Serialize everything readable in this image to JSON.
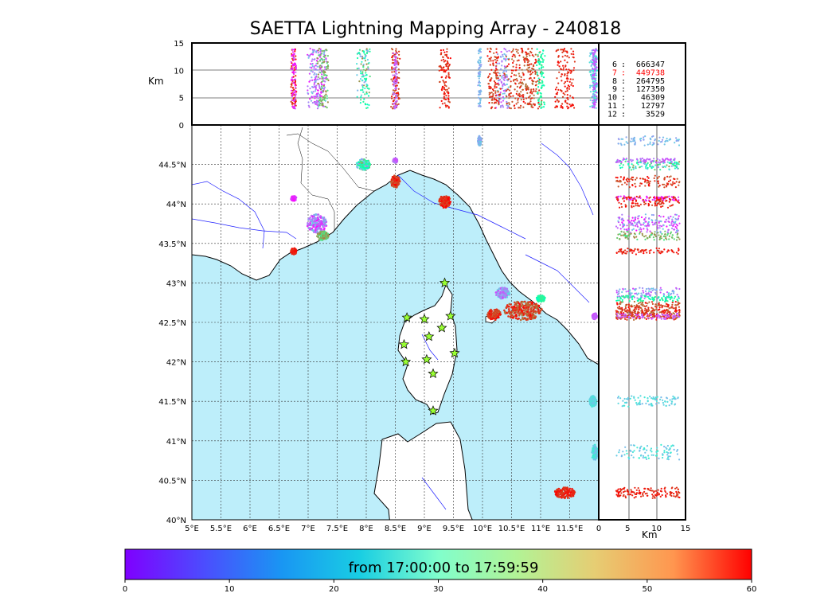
{
  "title": "SAETTA Lightning Mapping Array - 240818",
  "chart_data": {
    "type": "scatter",
    "title": "SAETTA Lightning Mapping Array - 240818",
    "map": {
      "lon_ticks": [
        "5°E",
        "5.5°E",
        "6°E",
        "6.5°E",
        "7°E",
        "7.5°E",
        "8°E",
        "8.5°E",
        "9°E",
        "9.5°E",
        "10°E",
        "10.5°E",
        "11°E",
        "11.5°E"
      ],
      "lat_ticks": [
        "40°N",
        "40.5°N",
        "41°N",
        "41.5°N",
        "42°N",
        "42.5°N",
        "43°N",
        "43.5°N",
        "44°N",
        "44.5°N"
      ],
      "lon_range": [
        5.0,
        12.0
      ],
      "lat_range": [
        40.0,
        45.0
      ],
      "grid": true
    },
    "altitude_panels": {
      "unit_label": "Km",
      "range": [
        0,
        15
      ],
      "ticks": [
        "0",
        "5",
        "10",
        "15"
      ]
    },
    "stations": [
      {
        "lon": 9.35,
        "lat": 43.0
      },
      {
        "lon": 8.7,
        "lat": 42.56
      },
      {
        "lon": 9.0,
        "lat": 42.54
      },
      {
        "lon": 9.45,
        "lat": 42.58
      },
      {
        "lon": 9.3,
        "lat": 42.43
      },
      {
        "lon": 9.08,
        "lat": 42.32
      },
      {
        "lon": 8.65,
        "lat": 42.22
      },
      {
        "lon": 9.52,
        "lat": 42.11
      },
      {
        "lon": 9.04,
        "lat": 42.03
      },
      {
        "lon": 8.68,
        "lat": 42.0
      },
      {
        "lon": 9.15,
        "lat": 41.85
      },
      {
        "lon": 9.15,
        "lat": 41.38
      }
    ],
    "sources_by_station_count": [
      {
        "stations": "6",
        "count": "666347",
        "highlight": false
      },
      {
        "stations": "7",
        "count": "449738",
        "highlight": true
      },
      {
        "stations": "8",
        "count": "264795",
        "highlight": false
      },
      {
        "stations": "9",
        "count": "127350",
        "highlight": false
      },
      {
        "stations": "10",
        "count": "46309",
        "highlight": false
      },
      {
        "stations": "11",
        "count": "12797",
        "highlight": false
      },
      {
        "stations": "12",
        "count": "3529",
        "highlight": false
      }
    ],
    "clusters": [
      {
        "lon": 7.15,
        "lat": 43.75,
        "rlon": 0.17,
        "rlat": 0.12,
        "t0": 0,
        "t1": 18
      },
      {
        "lon": 7.25,
        "lat": 43.6,
        "rlon": 0.1,
        "rlat": 0.06,
        "t0": 38,
        "t1": 50
      },
      {
        "lon": 6.75,
        "lat": 43.4,
        "rlon": 0.05,
        "rlat": 0.04,
        "t0": 55,
        "t1": 60
      },
      {
        "lon": 6.75,
        "lat": 44.07,
        "rlon": 0.05,
        "rlat": 0.03,
        "t0": 0,
        "t1": 6
      },
      {
        "lon": 7.95,
        "lat": 44.5,
        "rlon": 0.12,
        "rlat": 0.07,
        "t0": 10,
        "t1": 50
      },
      {
        "lon": 8.5,
        "lat": 44.28,
        "rlon": 0.08,
        "rlat": 0.08,
        "t0": 52,
        "t1": 60
      },
      {
        "lon": 8.5,
        "lat": 44.55,
        "rlon": 0.04,
        "rlat": 0.03,
        "t0": 5,
        "t1": 10
      },
      {
        "lon": 9.35,
        "lat": 44.03,
        "rlon": 0.1,
        "rlat": 0.08,
        "t0": 54,
        "t1": 60
      },
      {
        "lon": 9.95,
        "lat": 44.8,
        "rlon": 0.03,
        "rlat": 0.06,
        "t0": 12,
        "t1": 18
      },
      {
        "lon": 10.35,
        "lat": 42.87,
        "rlon": 0.12,
        "rlat": 0.07,
        "t0": 5,
        "t1": 20
      },
      {
        "lon": 10.7,
        "lat": 42.65,
        "rlon": 0.33,
        "rlat": 0.12,
        "t0": 50,
        "t1": 60
      },
      {
        "lon": 10.2,
        "lat": 42.6,
        "rlon": 0.12,
        "rlat": 0.07,
        "t0": 52,
        "t1": 60
      },
      {
        "lon": 11.0,
        "lat": 42.8,
        "rlon": 0.08,
        "rlat": 0.04,
        "t0": 28,
        "t1": 38
      },
      {
        "lon": 11.42,
        "lat": 40.34,
        "rlon": 0.18,
        "rlat": 0.07,
        "t0": 55,
        "t1": 60
      },
      {
        "lon": 11.9,
        "lat": 41.5,
        "rlon": 0.06,
        "rlat": 0.07,
        "t0": 15,
        "t1": 22
      },
      {
        "lon": 11.93,
        "lat": 40.85,
        "rlon": 0.05,
        "rlat": 0.1,
        "t0": 15,
        "t1": 25
      },
      {
        "lon": 11.93,
        "lat": 42.58,
        "rlon": 0.04,
        "rlat": 0.04,
        "t0": 5,
        "t1": 8
      }
    ],
    "colorbar": {
      "label": "from 17:00:00 to 17:59:59",
      "min": 0,
      "max": 60,
      "ticks": [
        "0",
        "10",
        "20",
        "30",
        "40",
        "50",
        "60"
      ],
      "colormap": "rainbow"
    }
  }
}
